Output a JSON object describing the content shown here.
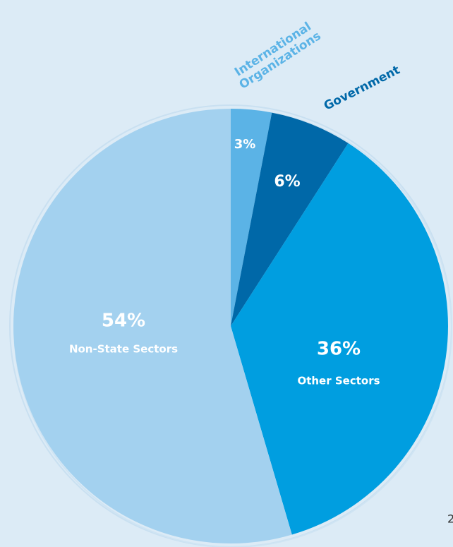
{
  "chart_data": {
    "type": "pie",
    "categories": [
      "International Organizations",
      "Government",
      "Other Sectors",
      "Non-State Sectors"
    ],
    "values": [
      3,
      6,
      36,
      54
    ],
    "value_labels": [
      "3%",
      "6%",
      "36%",
      "54%"
    ],
    "colors": [
      "#5bb3e6",
      "#0068a8",
      "#009ee0",
      "#a3d1ef"
    ]
  },
  "page_number": "2"
}
